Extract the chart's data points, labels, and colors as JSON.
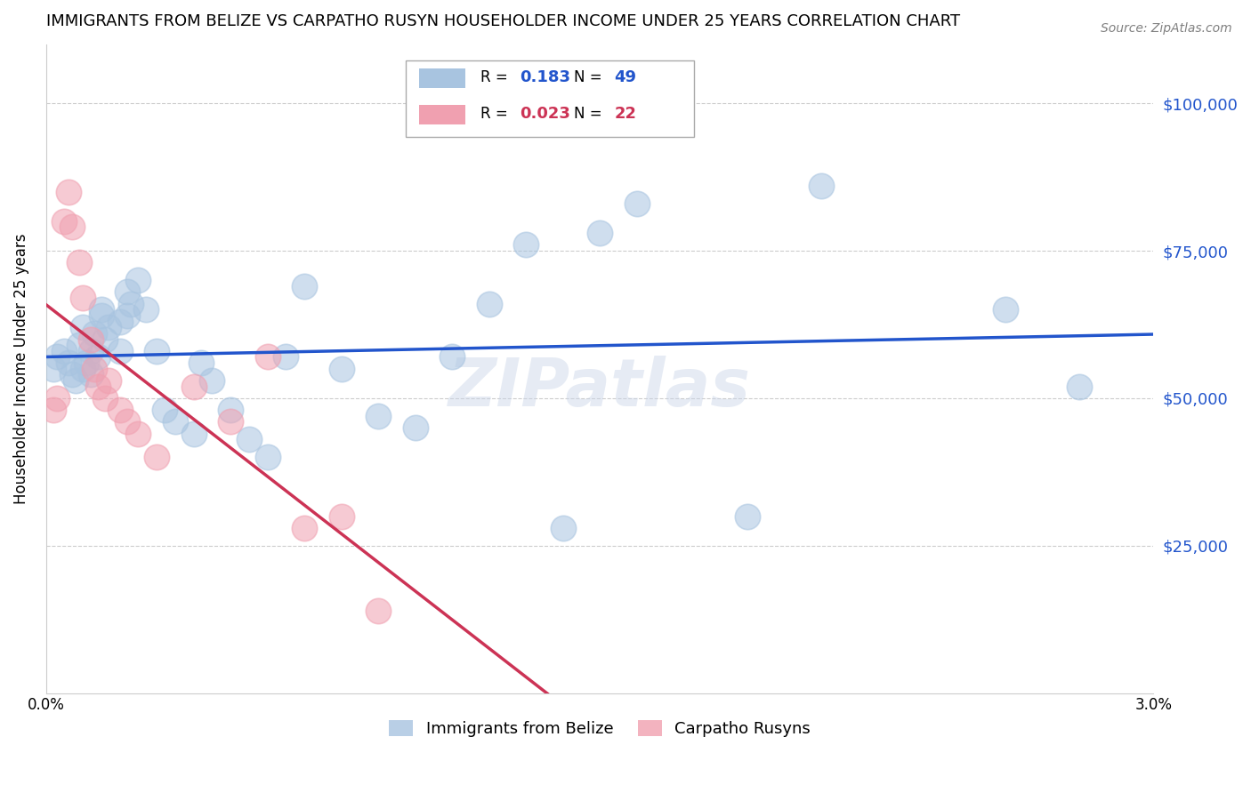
{
  "title": "IMMIGRANTS FROM BELIZE VS CARPATHO RUSYN HOUSEHOLDER INCOME UNDER 25 YEARS CORRELATION CHART",
  "source": "Source: ZipAtlas.com",
  "ylabel": "Householder Income Under 25 years",
  "y_tick_labels": [
    "$25,000",
    "$50,000",
    "$75,000",
    "$100,000"
  ],
  "y_tick_values": [
    25000,
    50000,
    75000,
    100000
  ],
  "xlim": [
    0.0,
    0.03
  ],
  "ylim": [
    0,
    110000
  ],
  "watermark": "ZIPatlas",
  "blue_color": "#a8c4e0",
  "pink_color": "#f0a0b0",
  "blue_line_color": "#2255cc",
  "pink_line_color": "#cc3355",
  "belize_x": [
    0.0002,
    0.0003,
    0.0005,
    0.0006,
    0.0007,
    0.0008,
    0.0009,
    0.001,
    0.001,
    0.0011,
    0.0012,
    0.0012,
    0.0013,
    0.0014,
    0.0015,
    0.0015,
    0.0016,
    0.0017,
    0.002,
    0.002,
    0.0022,
    0.0022,
    0.0023,
    0.0025,
    0.0027,
    0.003,
    0.0032,
    0.0035,
    0.004,
    0.0042,
    0.0045,
    0.005,
    0.0055,
    0.006,
    0.0065,
    0.007,
    0.008,
    0.009,
    0.01,
    0.011,
    0.012,
    0.013,
    0.014,
    0.015,
    0.016,
    0.019,
    0.021,
    0.026,
    0.028
  ],
  "belize_y": [
    55000,
    57000,
    58000,
    56000,
    54000,
    53000,
    59000,
    55000,
    62000,
    56000,
    58000,
    54000,
    61000,
    57000,
    64000,
    65000,
    60000,
    62000,
    63000,
    58000,
    68000,
    64000,
    66000,
    70000,
    65000,
    58000,
    48000,
    46000,
    44000,
    56000,
    53000,
    48000,
    43000,
    40000,
    57000,
    69000,
    55000,
    47000,
    45000,
    57000,
    66000,
    76000,
    28000,
    78000,
    83000,
    30000,
    86000,
    65000,
    52000
  ],
  "rusyn_x": [
    0.0002,
    0.0003,
    0.0005,
    0.0006,
    0.0007,
    0.0009,
    0.001,
    0.0012,
    0.0013,
    0.0014,
    0.0016,
    0.0017,
    0.002,
    0.0022,
    0.0025,
    0.003,
    0.004,
    0.005,
    0.006,
    0.007,
    0.008,
    0.009
  ],
  "rusyn_y": [
    48000,
    50000,
    80000,
    85000,
    79000,
    73000,
    67000,
    60000,
    55000,
    52000,
    50000,
    53000,
    48000,
    46000,
    44000,
    40000,
    52000,
    46000,
    57000,
    28000,
    30000,
    14000
  ],
  "r1_val": "0.183",
  "n1_val": "49",
  "r2_val": "0.023",
  "n2_val": "22"
}
